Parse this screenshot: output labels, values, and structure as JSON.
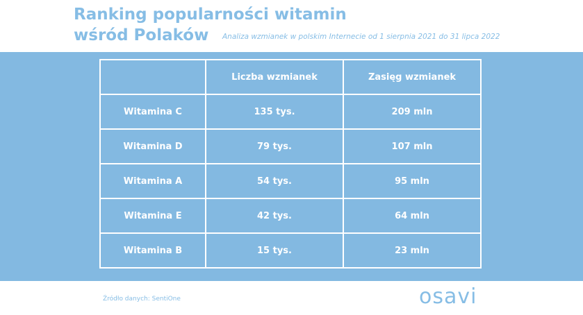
{
  "header": {
    "title_lines": [
      "Ranking popularności witamin",
      "wśród Polaków"
    ],
    "subtitle": "Analiza wzmianek w polskim Internecie od 1 sierpnia 2021 do 31 lipca 2022"
  },
  "table": {
    "columns": [
      "Liczba wzmianek",
      "Zasięg wzmianek"
    ],
    "rows": [
      [
        "Witamina C",
        "135 tys.",
        "209 mln"
      ],
      [
        "Witamina D",
        "79 tys.",
        "107 mln"
      ],
      [
        "Witamina A",
        "54 tys.",
        "95 mln"
      ],
      [
        "Witamina E",
        "42 tys.",
        "64 mln"
      ],
      [
        "Witamina B",
        "15 tys.",
        "23 mln"
      ]
    ]
  },
  "footer": {
    "source": "Źródło danych: SentiOne",
    "logo": "osavi"
  }
}
